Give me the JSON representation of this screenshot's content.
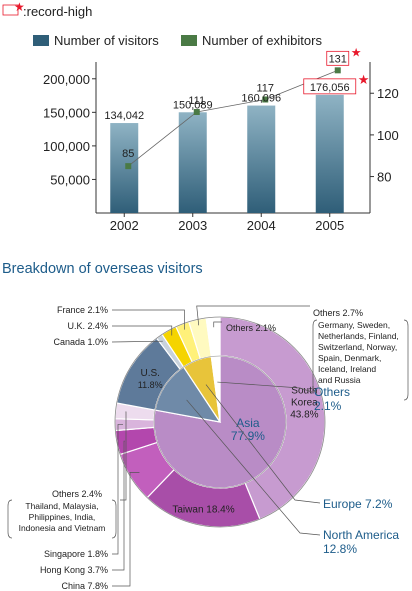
{
  "record_legend": {
    "label": ":record-high"
  },
  "colors": {
    "visitors_bar_top": "#8fb3c4",
    "visitors_bar_bottom": "#2f5e78",
    "exhibitors": "#4a7a45",
    "record_star": "#e8192c",
    "heading": "#1d5c8a",
    "asia_inner": "#b98cc6",
    "korea": "#c79bd0",
    "taiwan": "#a84ea8",
    "china": "#c25fbd",
    "hongkong": "#b347ad",
    "singapore": "#d9b4dc",
    "asia_others": "#eddcee",
    "north_america_inner": "#6f8aa8",
    "us": "#5e7a9a",
    "canada": "#c8d2dc",
    "europe_inner": "#e8c43a",
    "uk": "#f5d400",
    "france": "#fff17a",
    "europe_others": "#fffac0",
    "others_inner": "#ffffff"
  },
  "chart_data": [
    {
      "type": "bar",
      "categories": [
        "2002",
        "2003",
        "2004",
        "2005"
      ],
      "series": [
        {
          "name": "Number of visitors",
          "type": "bar",
          "axis": "left",
          "values": [
            134042,
            150089,
            160096,
            176056
          ],
          "value_labels": [
            "134,042",
            "150,089",
            "160,096",
            "176,056"
          ]
        },
        {
          "name": "Number of exhibitors",
          "type": "line",
          "axis": "right",
          "values": [
            85,
            111,
            117,
            131
          ],
          "value_labels": [
            "85",
            "111",
            "117",
            "131"
          ]
        }
      ],
      "record_high": {
        "visitors": "2005",
        "exhibitors": "2005"
      },
      "left_axis": {
        "ylim": [
          0,
          225000
        ],
        "ticks": [
          50000,
          100000,
          150000,
          200000
        ],
        "tick_labels": [
          "50,000",
          "100,000",
          "150,000",
          "200,000"
        ]
      },
      "right_axis": {
        "ylim": [
          62.5,
          135
        ],
        "ticks": [
          80,
          100,
          120
        ],
        "tick_labels": [
          "80",
          "100",
          "120"
        ]
      },
      "legend_position": "top",
      "grid": false
    },
    {
      "type": "pie",
      "title": "Breakdown of overseas visitors",
      "inner_ring": [
        {
          "label": "Asia",
          "value": 77.9,
          "display": "77.9%"
        },
        {
          "label": "North America",
          "value": 12.8,
          "display": "12.8%"
        },
        {
          "label": "Europe",
          "value": 7.2,
          "display": "7.2%"
        },
        {
          "label": "Others",
          "value": 2.1,
          "display": "2.1%"
        }
      ],
      "outer_ring": [
        {
          "label": "South Korea",
          "value": 43.8,
          "display": "43.8%",
          "group": "Asia"
        },
        {
          "label": "Taiwan",
          "value": 18.4,
          "display": "18.4%",
          "group": "Asia"
        },
        {
          "label": "China",
          "value": 7.8,
          "display": "7.8%",
          "group": "Asia"
        },
        {
          "label": "Hong Kong",
          "value": 3.7,
          "display": "3.7%",
          "group": "Asia"
        },
        {
          "label": "Singapore",
          "value": 1.8,
          "display": "1.8%",
          "group": "Asia"
        },
        {
          "label": "Others",
          "value": 2.4,
          "display": "2.4%",
          "group": "Asia",
          "note": [
            "Thailand, Malaysia,",
            "Philippines, India,",
            "Indonesia and Vietnam"
          ]
        },
        {
          "label": "U.S.",
          "value": 11.8,
          "display": "11.8%",
          "group": "North America"
        },
        {
          "label": "Canada",
          "value": 1.0,
          "display": "1.0%",
          "group": "North America"
        },
        {
          "label": "U.K.",
          "value": 2.4,
          "display": "2.4%",
          "group": "Europe"
        },
        {
          "label": "France",
          "value": 2.1,
          "display": "2.1%",
          "group": "Europe"
        },
        {
          "label": "Others",
          "value": 2.7,
          "display": "2.7%",
          "group": "Europe",
          "note": [
            "Germany, Sweden,",
            "Netherlands, Finland,",
            "Switzerland, Norway,",
            "Spain, Denmark,",
            "Iceland, Ireland",
            "and Russia"
          ]
        },
        {
          "label": "Others",
          "value": 2.1,
          "display": "2.1%",
          "group": "Others"
        }
      ]
    }
  ]
}
